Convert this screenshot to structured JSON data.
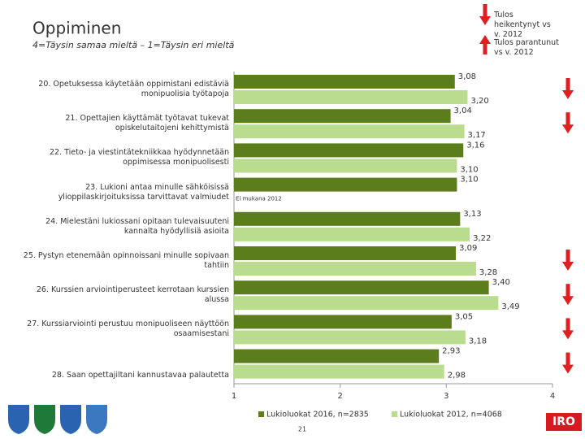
{
  "chart_data": {
    "type": "hbar",
    "title": "Oppiminen",
    "subtitle": "4=Täysin samaa mieltä – 1=Täysin eri mieltä",
    "categories": [
      "20. Opetuksessa käytetään oppimistani edistäviä monipuolisia työtapoja",
      "21. Opettajien käyttämät työtavat tukevat opiskelutaitojeni kehittymistä",
      "22. Tieto- ja viestintätekniikkaa hyödynnetään oppimisessa monipuolisesti",
      "23. Lukioni antaa minulle sähköisissä ylioppilaskirjoituksissa tarvittavat valmiudet",
      "24. Mielestäni lukiossani opitaan tulevaisuuteni kannalta hyödyllisiä asioita",
      "25. Pystyn etenemään opinnoissani minulle sopivaan tahtiin",
      "26. Kurssien arviointiperusteet kerrotaan kurssien alussa",
      "27. Kurssiarviointi perustuu monipuoliseen näyttöön osaamisestani",
      "28. Saan opettajiltani kannustavaa palautetta"
    ],
    "series": [
      {
        "name": "Lukioluokat 2016, n=2835",
        "color": "#5b7d1c",
        "values": [
          3.08,
          3.04,
          3.16,
          3.1,
          3.13,
          3.09,
          3.4,
          3.05,
          2.93
        ],
        "value_labels": [
          "3,08",
          "3,04",
          "3,16",
          "3,10",
          "3,13",
          "3,09",
          "3,40",
          "3,05",
          "2,93"
        ]
      },
      {
        "name": "Lukioluokat 2012, n=4068",
        "color": "#b9dc8e",
        "values": [
          3.2,
          3.17,
          3.1,
          null,
          3.22,
          3.28,
          3.49,
          3.18,
          2.98
        ],
        "value_labels": [
          "3,20",
          "3,17",
          "3,10",
          null,
          "3,22",
          "3,28",
          "3,49",
          "3,18",
          "2,98"
        ]
      }
    ],
    "missing_note": "Ei mukana 2012",
    "weakened_rows": [
      true,
      true,
      false,
      false,
      false,
      true,
      true,
      true,
      true
    ],
    "legend_weakened": "Tulos heikentynyt vs v. 2012",
    "legend_improved": "Tulos parantunut vs v. 2012",
    "xlim": [
      1,
      4
    ],
    "xticks": [
      1,
      2,
      3,
      4
    ]
  },
  "footer": {
    "page_number": "21",
    "logo_text": "IRO"
  }
}
